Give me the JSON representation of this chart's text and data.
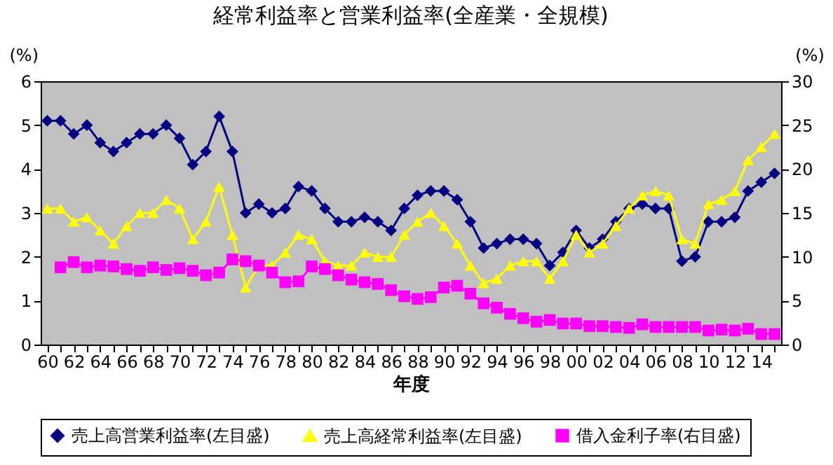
{
  "chart_data": {
    "type": "line",
    "title": "経常利益率と営業利益率(全産業・全規模)",
    "xlabel": "年度",
    "ylabel": "(%)",
    "y2label": "(%)",
    "categories": [
      "60",
      null,
      "62",
      null,
      "64",
      null,
      "66",
      null,
      "68",
      null,
      "70",
      null,
      "72",
      null,
      "74",
      null,
      "76",
      null,
      "78",
      null,
      "80",
      null,
      "82",
      null,
      "84",
      null,
      "86",
      null,
      "88",
      null,
      "90",
      null,
      "92",
      null,
      "94",
      null,
      "96",
      null,
      "98",
      null,
      "00",
      null,
      "02",
      null,
      "04",
      null,
      "06",
      null,
      "08",
      null,
      "10",
      null,
      "12",
      null,
      "14",
      null
    ],
    "ylim": [
      0,
      6
    ],
    "yticks": [
      0,
      1,
      2,
      3,
      4,
      5,
      6
    ],
    "y2lim": [
      0,
      30
    ],
    "y2ticks": [
      0,
      5,
      10,
      15,
      20,
      25,
      30
    ],
    "grid": false,
    "legend": "bottom",
    "series": [
      {
        "name": "売上高営業利益率(左目盛)",
        "color": "#000080",
        "marker": "diamond",
        "values": [
          5.1,
          5.1,
          4.8,
          5.0,
          4.6,
          4.4,
          4.6,
          4.8,
          4.8,
          5.0,
          4.7,
          4.1,
          4.4,
          5.2,
          4.4,
          3.0,
          3.2,
          3.0,
          3.1,
          3.6,
          3.5,
          3.1,
          2.8,
          2.8,
          2.9,
          2.8,
          2.6,
          3.1,
          3.4,
          3.5,
          3.5,
          3.3,
          2.8,
          2.2,
          2.3,
          2.4,
          2.4,
          2.3,
          1.8,
          2.1,
          2.6,
          2.2,
          2.4,
          2.8,
          3.1,
          3.2,
          3.1,
          3.1,
          1.9,
          2.0,
          2.8,
          2.8,
          2.9,
          3.5,
          3.7,
          3.9
        ]
      },
      {
        "name": "売上高経常利益率(左目盛)",
        "color": "#ffff00",
        "marker": "triangle",
        "values": [
          3.1,
          3.1,
          2.8,
          2.9,
          2.6,
          2.3,
          2.7,
          3.0,
          3.0,
          3.3,
          3.1,
          2.4,
          2.8,
          3.6,
          2.5,
          1.3,
          1.8,
          1.8,
          2.1,
          2.5,
          2.4,
          1.9,
          1.8,
          1.8,
          2.1,
          2.0,
          2.0,
          2.5,
          2.8,
          3.0,
          2.7,
          2.3,
          1.8,
          1.4,
          1.5,
          1.8,
          1.9,
          1.9,
          1.5,
          1.9,
          2.5,
          2.1,
          2.3,
          2.7,
          3.1,
          3.4,
          3.5,
          3.4,
          2.4,
          2.3,
          3.2,
          3.3,
          3.5,
          4.2,
          4.5,
          4.8
        ]
      },
      {
        "name": "借入金利子率(右目盛)",
        "color": "#ff00ff",
        "marker": "square",
        "axis": "y2",
        "values": [
          null,
          8.8,
          9.4,
          8.8,
          9.0,
          8.9,
          8.6,
          8.4,
          8.8,
          8.5,
          8.7,
          8.4,
          7.9,
          8.2,
          9.7,
          9.5,
          9.0,
          8.2,
          7.1,
          7.2,
          8.9,
          8.6,
          7.9,
          7.4,
          7.1,
          6.9,
          6.2,
          5.5,
          5.2,
          5.4,
          6.5,
          6.7,
          5.8,
          4.7,
          4.2,
          3.5,
          3.0,
          2.6,
          2.8,
          2.4,
          2.4,
          2.1,
          2.1,
          2.0,
          1.9,
          2.3,
          2.0,
          2.0,
          2.0,
          2.0,
          1.6,
          1.7,
          1.6,
          1.8,
          1.2,
          1.2
        ]
      }
    ]
  }
}
